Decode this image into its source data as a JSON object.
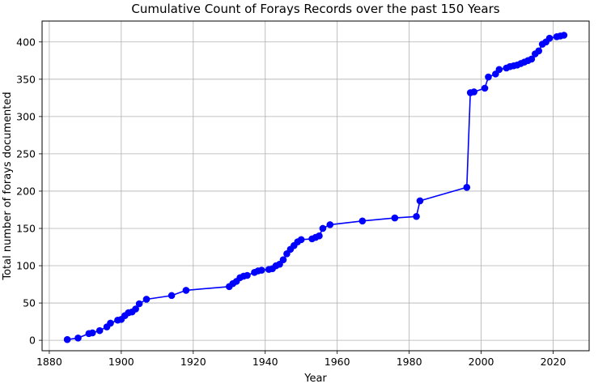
{
  "chart_data": {
    "type": "line",
    "title": "Cumulative Count of Forays Records over the past 150 Years",
    "xlabel": "Year",
    "ylabel": "Total number of forays documented",
    "xlim": [
      1878,
      2030
    ],
    "ylim": [
      -14,
      428
    ],
    "xticks": [
      1880,
      1900,
      1920,
      1940,
      1960,
      1980,
      2000,
      2020
    ],
    "yticks": [
      0,
      50,
      100,
      150,
      200,
      250,
      300,
      350,
      400
    ],
    "grid": true,
    "marker": "circle",
    "color": "#0000ff",
    "series": [
      {
        "x": [
          1885,
          1888,
          1891,
          1892,
          1894,
          1896,
          1897,
          1899,
          1900,
          1901,
          1902,
          1903,
          1904,
          1905,
          1907,
          1914,
          1918,
          1930,
          1931,
          1932,
          1933,
          1934,
          1935,
          1937,
          1938,
          1939,
          1941,
          1942,
          1943,
          1944,
          1945,
          1946,
          1947,
          1948,
          1949,
          1950,
          1953,
          1954,
          1955,
          1956,
          1958,
          1967,
          1976,
          1982,
          1983,
          1996,
          1997,
          1998,
          2001,
          2002,
          2004,
          2005,
          2007,
          2008,
          2009,
          2010,
          2011,
          2012,
          2013,
          2014,
          2015,
          2016,
          2017,
          2018,
          2019,
          2021,
          2022,
          2023
        ],
        "y": [
          1,
          3,
          9,
          10,
          13,
          18,
          23,
          27,
          28,
          33,
          37,
          38,
          42,
          49,
          55,
          60,
          67,
          72,
          76,
          79,
          84,
          86,
          87,
          91,
          93,
          94,
          95,
          96,
          100,
          102,
          108,
          116,
          122,
          127,
          132,
          135,
          136,
          138,
          140,
          150,
          155,
          160,
          164,
          166,
          187,
          205,
          332,
          333,
          338,
          353,
          357,
          363,
          365,
          367,
          368,
          369,
          371,
          373,
          375,
          377,
          384,
          388,
          397,
          400,
          405,
          407,
          408,
          409
        ]
      }
    ]
  }
}
